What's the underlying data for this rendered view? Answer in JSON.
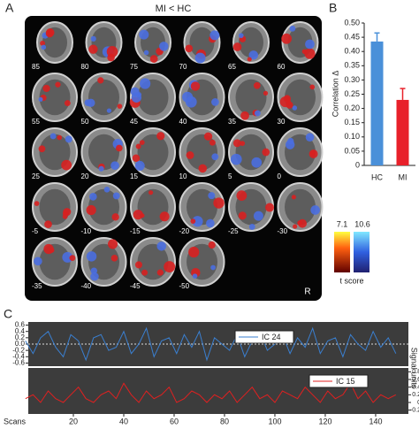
{
  "panel_labels": [
    "A",
    "B",
    "C"
  ],
  "brain_panel": {
    "title": "MI < HC",
    "slices": [
      "85",
      "80",
      "75",
      "70",
      "65",
      "60",
      "55",
      "50",
      "45",
      "40",
      "35",
      "30",
      "25",
      "20",
      "15",
      "10",
      "5",
      "0",
      "-5",
      "-10",
      "-15",
      "-20",
      "-25",
      "-30",
      "-35",
      "-40",
      "-45",
      "-50"
    ],
    "orientation": "R",
    "colorbar": {
      "labels": [
        "7.1",
        "10.6"
      ],
      "title": "t score"
    }
  },
  "chart_data": [
    {
      "type": "bar",
      "y_label": "Correlation Δ",
      "categories": [
        "HC",
        "MI"
      ],
      "values": [
        0.435,
        0.23
      ],
      "errors": [
        0.03,
        0.04
      ],
      "colors": [
        "#4a90d9",
        "#e8202a"
      ],
      "ylim": [
        0,
        0.5
      ],
      "yticks": [
        0,
        0.05,
        {
          "value": 0.1,
          "label": "0.10"
        },
        0.15,
        {
          "value": 0.2,
          "label": "0.20"
        },
        0.25,
        {
          "value": 0.3,
          "label": "0.30"
        },
        0.35,
        {
          "value": 0.4,
          "label": "0.40"
        },
        0.45,
        {
          "value": 0.5,
          "label": "0.50"
        }
      ]
    },
    {
      "type": "line",
      "x_label": "Scans",
      "y2_label": "Signal units",
      "x": [
        1,
        4,
        7,
        10,
        13,
        16,
        19,
        22,
        25,
        28,
        31,
        34,
        37,
        40,
        43,
        46,
        49,
        52,
        55,
        58,
        61,
        64,
        67,
        70,
        73,
        76,
        79,
        82,
        85,
        88,
        91,
        94,
        97,
        100,
        103,
        106,
        109,
        112,
        115,
        118,
        121,
        124,
        127,
        130,
        133,
        136,
        139,
        142,
        145,
        148
      ],
      "xlim": [
        0,
        153
      ],
      "xticks": [
        20,
        40,
        60,
        80,
        100,
        120,
        140
      ],
      "ylim": [
        -0.7,
        0.7
      ],
      "yticks": [
        -0.6,
        -0.4,
        -0.2,
        {
          "value": 0,
          "label": "0.0"
        },
        0.2,
        0.4,
        0.6
      ],
      "y2lim": [
        -0.3,
        0.9
      ],
      "y2ticks": [
        -0.2,
        0,
        0.2,
        0.4,
        0.6,
        0.8
      ],
      "series": [
        {
          "name": "IC 24",
          "color": "#3a7fd0",
          "values": [
            0.1,
            -0.3,
            0.2,
            0.4,
            -0.1,
            -0.4,
            0.3,
            0.1,
            -0.5,
            0.2,
            0.3,
            -0.2,
            -0.1,
            0.4,
            -0.3,
            0.0,
            0.5,
            -0.4,
            0.1,
            0.2,
            -0.3,
            0.3,
            -0.1,
            0.4,
            -0.5,
            0.2,
            0.0,
            -0.2,
            0.3,
            -0.4,
            0.1,
            0.4,
            -0.2,
            0.0,
            0.3,
            -0.3,
            0.2,
            -0.1,
            0.5,
            -0.3,
            0.1,
            0.2,
            -0.4,
            0.3,
            0.0,
            -0.2,
            0.4,
            -0.1,
            0.2,
            -0.3
          ]
        },
        {
          "name": "IC 15",
          "color": "#e02020",
          "axis": "y2",
          "values": [
            0.1,
            0.2,
            0.0,
            0.3,
            0.1,
            0.0,
            0.2,
            0.4,
            0.1,
            0.0,
            0.2,
            0.3,
            0.1,
            0.5,
            0.2,
            0.0,
            0.3,
            0.1,
            0.2,
            0.4,
            0.0,
            0.1,
            0.3,
            0.2,
            0.0,
            0.2,
            0.1,
            0.3,
            0.0,
            0.2,
            0.4,
            0.1,
            0.2,
            0.0,
            0.3,
            0.2,
            0.1,
            0.4,
            0.2,
            0.0,
            0.3,
            0.1,
            0.2,
            0.5,
            0.1,
            0.3,
            0.0,
            0.2,
            0.1,
            0.2
          ]
        }
      ]
    }
  ]
}
